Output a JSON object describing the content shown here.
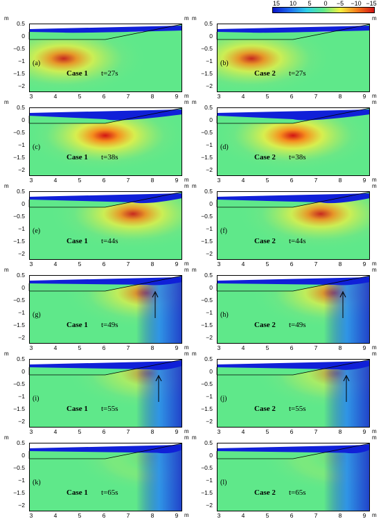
{
  "colorbar": {
    "ticks": [
      "15",
      "10",
      "5",
      "0",
      "−5",
      "−10",
      "−15"
    ],
    "colors": [
      "#0a14c8",
      "#1e6cf0",
      "#2ecfe8",
      "#5fe88a",
      "#f5f040",
      "#f57a1a",
      "#d21414"
    ]
  },
  "axes": {
    "unit": "m",
    "yticks": [
      "0.5",
      "0",
      "−0.5",
      "−1",
      "−1.5",
      "−2"
    ],
    "xticks": [
      "3",
      "4",
      "5",
      "6",
      "7",
      "8",
      "9"
    ]
  },
  "panels": [
    {
      "id": "(a)",
      "case": "Case 1",
      "time": "t=27s",
      "arrow": false
    },
    {
      "id": "(b)",
      "case": "Case 2",
      "time": "t=27s",
      "arrow": false
    },
    {
      "id": "(c)",
      "case": "Case 1",
      "time": "t=38s",
      "arrow": false
    },
    {
      "id": "(d)",
      "case": "Case 2",
      "time": "t=38s",
      "arrow": false
    },
    {
      "id": "(e)",
      "case": "Case 1",
      "time": "t=44s",
      "arrow": false
    },
    {
      "id": "(f)",
      "case": "Case 2",
      "time": "t=44s",
      "arrow": false
    },
    {
      "id": "(g)",
      "case": "Case 1",
      "time": "t=49s",
      "arrow": true
    },
    {
      "id": "(h)",
      "case": "Case 2",
      "time": "t=49s",
      "arrow": true
    },
    {
      "id": "(i)",
      "case": "Case 1",
      "time": "t=55s",
      "arrow": true
    },
    {
      "id": "(j)",
      "case": "Case 2",
      "time": "t=55s",
      "arrow": true
    },
    {
      "id": "(k)",
      "case": "Case 1",
      "time": "t=65s",
      "arrow": false
    },
    {
      "id": "(l)",
      "case": "Case 2",
      "time": "t=65s",
      "arrow": false
    }
  ]
}
